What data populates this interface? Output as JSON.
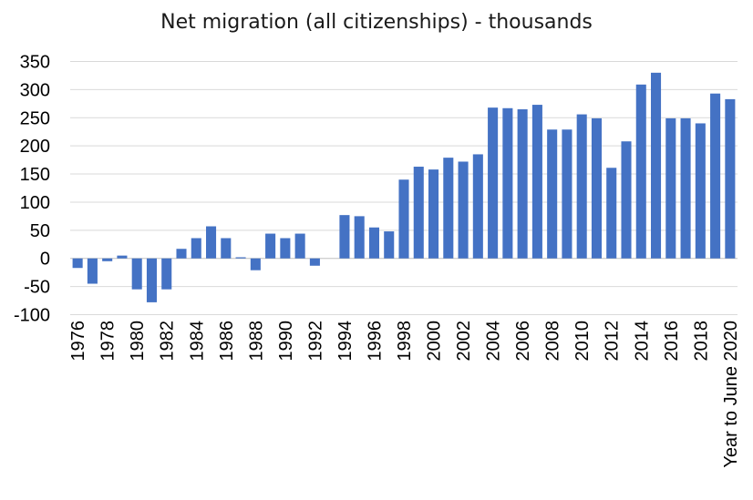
{
  "chart_data": {
    "type": "bar",
    "title": "Net migration (all citizenships) - thousands",
    "xlabel": "",
    "ylabel": "",
    "ylim": [
      -100,
      350
    ],
    "yticks": [
      -100,
      -50,
      0,
      50,
      100,
      150,
      200,
      250,
      300,
      350
    ],
    "grid": true,
    "legend": "none",
    "bar_color": "#4472C4",
    "gridline_color": "#d9d9d9",
    "categories": [
      "1976",
      "1977",
      "1978",
      "1979",
      "1980",
      "1981",
      "1982",
      "1983",
      "1984",
      "1985",
      "1986",
      "1987",
      "1988",
      "1989",
      "1990",
      "1991",
      "1992",
      "1993",
      "1994",
      "1995",
      "1996",
      "1997",
      "1998",
      "1999",
      "2000",
      "2001",
      "2002",
      "2003",
      "2004",
      "2005",
      "2006",
      "2007",
      "2008",
      "2009",
      "2010",
      "2011",
      "2012",
      "2013",
      "2014",
      "2015",
      "2016",
      "2017",
      "2018",
      "2019",
      "Year to June 2020"
    ],
    "category_labels": [
      "1976",
      "",
      "1978",
      "",
      "1980",
      "",
      "1982",
      "",
      "1984",
      "",
      "1986",
      "",
      "1988",
      "",
      "1990",
      "",
      "1992",
      "",
      "1994",
      "",
      "1996",
      "",
      "1998",
      "",
      "2000",
      "",
      "2002",
      "",
      "2004",
      "",
      "2006",
      "",
      "2008",
      "",
      "2010",
      "",
      "2012",
      "",
      "2014",
      "",
      "2016",
      "",
      "2018",
      "",
      "Year to June 2020"
    ],
    "values": [
      -17,
      -45,
      -5,
      5,
      -55,
      -78,
      -55,
      17,
      36,
      57,
      36,
      2,
      -21,
      44,
      36,
      44,
      -13,
      0,
      77,
      75,
      55,
      48,
      140,
      163,
      158,
      179,
      172,
      185,
      268,
      267,
      265,
      273,
      229,
      229,
      256,
      249,
      161,
      208,
      309,
      330,
      249,
      249,
      240,
      293,
      283
    ]
  }
}
